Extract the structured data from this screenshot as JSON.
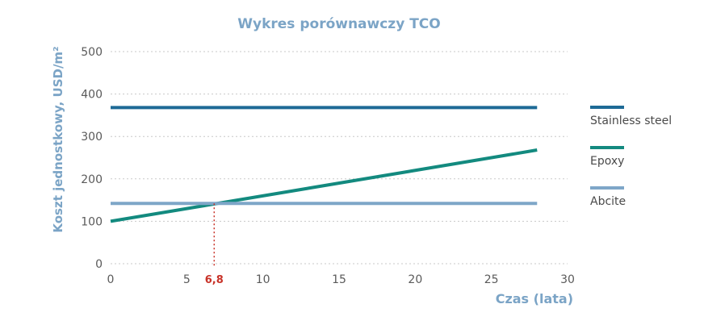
{
  "chart_data": {
    "type": "line",
    "title": "Wykres porównawczy TCO",
    "xlabel": "Czas (lata)",
    "ylabel": "Koszt jednostkowy, USD/m²",
    "xlim": [
      0,
      30
    ],
    "ylim": [
      0,
      500
    ],
    "xticks": [
      "0",
      "5",
      "10",
      "15",
      "20",
      "25",
      "30"
    ],
    "yticks": [
      "0",
      "100",
      "200",
      "300",
      "400",
      "500"
    ],
    "grid": true,
    "legend_position": "right",
    "series": [
      {
        "name": "Stainless steel",
        "color": "#1e6a96",
        "x": [
          0,
          28
        ],
        "y": [
          368,
          368
        ]
      },
      {
        "name": "Epoxy",
        "color": "#138a7f",
        "x": [
          0,
          28
        ],
        "y": [
          100,
          268
        ]
      },
      {
        "name": "Abcite",
        "color": "#7ea6c8",
        "x": [
          0,
          28
        ],
        "y": [
          142,
          142
        ]
      }
    ],
    "annotations": [
      {
        "label": "6,8",
        "x": 6.8,
        "y": 142,
        "color": "#c83228"
      }
    ]
  }
}
